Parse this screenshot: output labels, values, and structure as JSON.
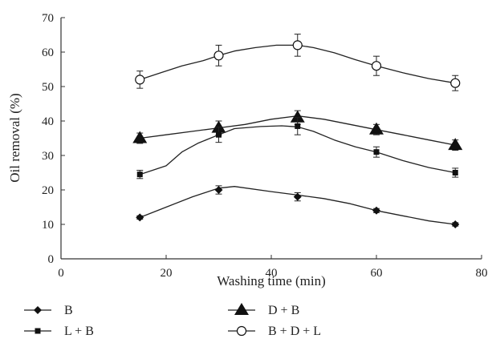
{
  "chart_data": {
    "type": "line",
    "xlabel": "Washing time (min)",
    "ylabel": "Oil removal (%)",
    "xlim": [
      0,
      80
    ],
    "ylim": [
      0,
      70
    ],
    "xticks": [
      0,
      20,
      40,
      60,
      80
    ],
    "yticks": [
      0,
      10,
      20,
      30,
      40,
      50,
      60,
      70
    ],
    "grid": false,
    "legend_position": "bottom",
    "x": [
      15,
      30,
      45,
      60,
      75
    ],
    "series": [
      {
        "name": "B",
        "marker": "diamond",
        "values": [
          12,
          20,
          18,
          14,
          10
        ],
        "errors": [
          0.5,
          1.2,
          1.2,
          0.6,
          0.5
        ]
      },
      {
        "name": "D + B",
        "marker": "triangle",
        "values": [
          35,
          38,
          41,
          37.5,
          33
        ],
        "errors": [
          1.5,
          2,
          2,
          1.5,
          1.5
        ]
      },
      {
        "name": "L + B",
        "marker": "square",
        "values": [
          24.5,
          36,
          38.5,
          31,
          25
        ],
        "errors": [
          1.2,
          2.2,
          2.5,
          1.5,
          1.3
        ]
      },
      {
        "name": "B + D + L",
        "marker": "circle-open",
        "values": [
          52,
          59,
          62,
          56,
          51
        ],
        "errors": [
          2.5,
          3,
          3.2,
          2.8,
          2.2
        ]
      }
    ],
    "smooth_curves": [
      [
        [
          15,
          12
        ],
        [
          20,
          15
        ],
        [
          25,
          18
        ],
        [
          30,
          20.5
        ],
        [
          33,
          21
        ],
        [
          40,
          19.5
        ],
        [
          45,
          18.5
        ],
        [
          50,
          17.5
        ],
        [
          55,
          16
        ],
        [
          60,
          14
        ],
        [
          65,
          12.5
        ],
        [
          70,
          11
        ],
        [
          75,
          10
        ]
      ],
      [
        [
          15,
          35
        ],
        [
          20,
          36
        ],
        [
          25,
          37
        ],
        [
          30,
          38
        ],
        [
          35,
          39
        ],
        [
          40,
          40.5
        ],
        [
          45,
          41.5
        ],
        [
          50,
          40.5
        ],
        [
          55,
          39
        ],
        [
          60,
          37.5
        ],
        [
          65,
          36
        ],
        [
          70,
          34.5
        ],
        [
          75,
          33
        ]
      ],
      [
        [
          15,
          24.5
        ],
        [
          20,
          27
        ],
        [
          23,
          31
        ],
        [
          26,
          33.5
        ],
        [
          30,
          36
        ],
        [
          33,
          37.8
        ],
        [
          38,
          38.4
        ],
        [
          42,
          38.6
        ],
        [
          45,
          38.3
        ],
        [
          48,
          37
        ],
        [
          52,
          34.5
        ],
        [
          56,
          32.5
        ],
        [
          60,
          31
        ],
        [
          65,
          28.5
        ],
        [
          70,
          26.5
        ],
        [
          75,
          25
        ]
      ],
      [
        [
          15,
          52
        ],
        [
          19,
          54
        ],
        [
          23,
          56
        ],
        [
          27,
          57.5
        ],
        [
          30,
          59
        ],
        [
          33,
          60.3
        ],
        [
          37,
          61.3
        ],
        [
          41,
          62
        ],
        [
          45,
          62
        ],
        [
          48,
          61.3
        ],
        [
          52,
          59.8
        ],
        [
          56,
          57.8
        ],
        [
          60,
          56
        ],
        [
          65,
          54
        ],
        [
          70,
          52.3
        ],
        [
          75,
          51
        ]
      ]
    ]
  }
}
